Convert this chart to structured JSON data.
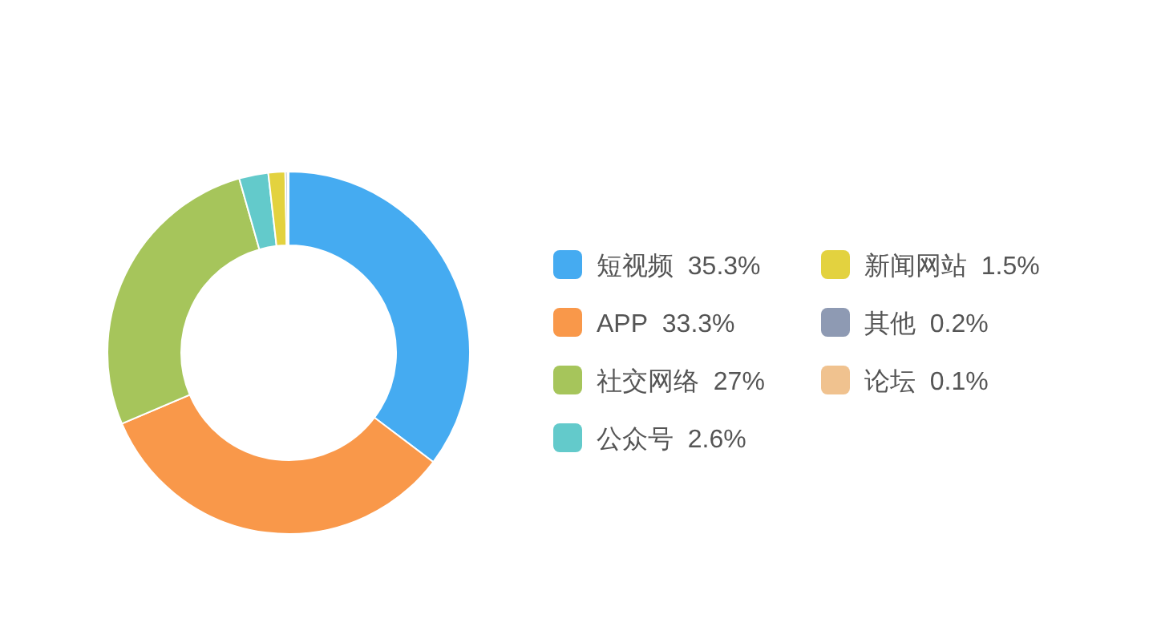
{
  "chart_data": {
    "type": "donut",
    "categories": [
      "短视频",
      "APP",
      "社交网络",
      "公众号",
      "新闻网站",
      "其他",
      "论坛"
    ],
    "values": [
      35.3,
      33.3,
      27,
      2.6,
      1.5,
      0.2,
      0.1
    ],
    "value_labels": [
      "35.3%",
      "33.3%",
      "27%",
      "2.6%",
      "1.5%",
      "0.2%",
      "0.1%"
    ],
    "colors": [
      "#45abf1",
      "#f9984a",
      "#a6c55b",
      "#63cacb",
      "#e3d23f",
      "#8e9ab3",
      "#f0c28f"
    ],
    "legend": "right"
  }
}
